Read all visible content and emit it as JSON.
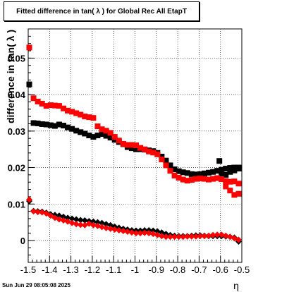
{
  "chart_data": {
    "type": "scatter",
    "title": "Fitted difference in tan( λ ) for Global Rec All EtapT",
    "xlabel": "η",
    "ylabel": "difference in tan( λ )",
    "xlim": [
      -1.5,
      -0.5
    ],
    "ylim": [
      -0.006,
      0.058
    ],
    "x_ticks": [
      -1.5,
      -1.4,
      -1.3,
      -1.2,
      -1.1,
      -1.0,
      -0.9,
      -0.8,
      -0.7,
      -0.6,
      -0.5
    ],
    "x_tick_labels": [
      "-1.5",
      "-1.4",
      "-1.3",
      "-1.2",
      "-1.1",
      "-1",
      "-0.9",
      "-0.8",
      "-0.7",
      "-0.6",
      "-0.5"
    ],
    "y_ticks": [
      0,
      0.01,
      0.02,
      0.03,
      0.04,
      0.05
    ],
    "y_tick_labels": [
      "0",
      "0.01",
      "0.02",
      "0.03",
      "0.04",
      "0.05"
    ],
    "grid": true,
    "series": [
      {
        "color": "#000000",
        "marker": "square",
        "x": [
          -1.495,
          -1.475,
          -1.455,
          -1.435,
          -1.415,
          -1.395,
          -1.375,
          -1.355,
          -1.335,
          -1.315,
          -1.295,
          -1.275,
          -1.255,
          -1.235,
          -1.215,
          -1.195,
          -1.175,
          -1.155,
          -1.135,
          -1.115,
          -1.095,
          -1.075,
          -1.055,
          -1.035,
          -1.015,
          -0.995,
          -0.975,
          -0.955,
          -0.935,
          -0.915,
          -0.895,
          -0.875,
          -0.855,
          -0.835,
          -0.815,
          -0.795,
          -0.775,
          -0.755,
          -0.735,
          -0.715,
          -0.695,
          -0.675,
          -0.655,
          -0.635,
          -0.615,
          -0.595,
          -0.575,
          -0.555,
          -0.535,
          -0.515
        ],
        "y": [
          0.0428,
          0.0322,
          0.0321,
          0.0319,
          0.0318,
          0.0316,
          0.0314,
          0.0318,
          0.0315,
          0.031,
          0.0306,
          0.0301,
          0.0297,
          0.0293,
          0.0288,
          0.0284,
          0.0288,
          0.0292,
          0.0287,
          0.0282,
          0.0276,
          0.027,
          0.0264,
          0.0256,
          0.0253,
          0.025,
          0.025,
          0.0249,
          0.0247,
          0.0245,
          0.024,
          0.023,
          0.0219,
          0.0206,
          0.0195,
          0.019,
          0.0187,
          0.0185,
          0.0182,
          0.0181,
          0.0182,
          0.0184,
          0.0186,
          0.0188,
          0.0191,
          0.0194,
          0.0197,
          0.0199,
          0.02,
          0.02
        ],
        "extra_points": [
          {
            "x": -0.515,
            "y": 0.0197
          },
          {
            "x": -0.535,
            "y": 0.0192
          },
          {
            "x": -0.555,
            "y": 0.0188
          },
          {
            "x": -0.575,
            "y": 0.018
          },
          {
            "x": -0.595,
            "y": 0.0183
          },
          {
            "x": -0.605,
            "y": 0.0218
          }
        ]
      },
      {
        "color": "#ff0000",
        "marker": "square",
        "x": [
          -1.495,
          -1.475,
          -1.455,
          -1.435,
          -1.415,
          -1.395,
          -1.375,
          -1.355,
          -1.335,
          -1.315,
          -1.295,
          -1.275,
          -1.255,
          -1.235,
          -1.215,
          -1.195,
          -1.175,
          -1.155,
          -1.135,
          -1.115,
          -1.095,
          -1.075,
          -1.055,
          -1.035,
          -1.015,
          -0.995,
          -0.975,
          -0.955,
          -0.935,
          -0.915,
          -0.895,
          -0.875,
          -0.855,
          -0.835,
          -0.815,
          -0.795,
          -0.775,
          -0.755,
          -0.735,
          -0.715,
          -0.695,
          -0.675,
          -0.655,
          -0.635,
          -0.615,
          -0.595,
          -0.575,
          -0.555,
          -0.535,
          -0.515
        ],
        "y": [
          0.0529,
          0.039,
          0.0381,
          0.0375,
          0.0369,
          0.0371,
          0.037,
          0.0369,
          0.0362,
          0.0356,
          0.0353,
          0.0349,
          0.0345,
          0.034,
          0.0338,
          0.0336,
          0.0313,
          0.0305,
          0.0301,
          0.0295,
          0.0284,
          0.0274,
          0.0265,
          0.0262,
          0.0262,
          0.0261,
          0.0254,
          0.025,
          0.0244,
          0.0241,
          0.0236,
          0.0222,
          0.0206,
          0.0191,
          0.0178,
          0.0172,
          0.0167,
          0.0164,
          0.0166,
          0.0169,
          0.017,
          0.0169,
          0.0167,
          0.0169,
          0.0171,
          0.0168,
          0.0163,
          0.0161,
          0.0162,
          0.0156
        ],
        "extra_points": [
          {
            "x": -0.575,
            "y": 0.0148
          },
          {
            "x": -0.555,
            "y": 0.0137
          },
          {
            "x": -0.535,
            "y": 0.0125
          },
          {
            "x": -0.515,
            "y": 0.0128
          }
        ]
      },
      {
        "color": "#000000",
        "marker": "diamond",
        "x": [
          -1.495,
          -1.475,
          -1.455,
          -1.435,
          -1.415,
          -1.395,
          -1.375,
          -1.355,
          -1.335,
          -1.315,
          -1.295,
          -1.275,
          -1.255,
          -1.235,
          -1.215,
          -1.195,
          -1.175,
          -1.155,
          -1.135,
          -1.115,
          -1.095,
          -1.075,
          -1.055,
          -1.035,
          -1.015,
          -0.995,
          -0.975,
          -0.955,
          -0.935,
          -0.915,
          -0.895,
          -0.875,
          -0.855,
          -0.835,
          -0.815,
          -0.795,
          -0.775,
          -0.755,
          -0.735,
          -0.715,
          -0.695,
          -0.675,
          -0.655,
          -0.635,
          -0.615,
          -0.595,
          -0.575,
          -0.555,
          -0.535,
          -0.515
        ],
        "y": [
          0.0108,
          0.0081,
          0.008,
          0.0079,
          0.0076,
          0.0072,
          0.007,
          0.0068,
          0.0065,
          0.0062,
          0.006,
          0.0058,
          0.0056,
          0.0055,
          0.0053,
          0.0052,
          0.005,
          0.0048,
          0.0045,
          0.0042,
          0.0038,
          0.0035,
          0.0032,
          0.003,
          0.0028,
          0.0027,
          0.0027,
          0.0028,
          0.0028,
          0.0027,
          0.0025,
          0.0022,
          0.0018,
          0.0015,
          0.0013,
          0.0012,
          0.0012,
          0.0012,
          0.0013,
          0.0014,
          0.0014,
          0.0013,
          0.0012,
          0.0012,
          0.0012,
          0.0012,
          0.0011,
          0.001,
          0.0008,
          -0.0003
        ],
        "extra_points": []
      },
      {
        "color": "#ff0000",
        "marker": "diamond",
        "x": [
          -1.495,
          -1.475,
          -1.455,
          -1.435,
          -1.415,
          -1.395,
          -1.375,
          -1.355,
          -1.335,
          -1.315,
          -1.295,
          -1.275,
          -1.255,
          -1.235,
          -1.215,
          -1.195,
          -1.175,
          -1.155,
          -1.135,
          -1.115,
          -1.095,
          -1.075,
          -1.055,
          -1.035,
          -1.015,
          -0.995,
          -0.975,
          -0.955,
          -0.935,
          -0.915,
          -0.895,
          -0.875,
          -0.855,
          -0.835,
          -0.815,
          -0.795,
          -0.775,
          -0.755,
          -0.735,
          -0.715,
          -0.695,
          -0.675,
          -0.655,
          -0.635,
          -0.615,
          -0.595,
          -0.575,
          -0.555,
          -0.535,
          -0.515
        ],
        "y": [
          0.0112,
          0.008,
          0.0078,
          0.0077,
          0.0074,
          0.0068,
          0.0062,
          0.0058,
          0.0055,
          0.0052,
          0.0048,
          0.0045,
          0.0043,
          0.0042,
          0.0046,
          0.0042,
          0.004,
          0.0037,
          0.0034,
          0.0032,
          0.003,
          0.0028,
          0.0026,
          0.0024,
          0.0022,
          0.002,
          0.002,
          0.0021,
          0.002,
          0.0018,
          0.0015,
          0.0012,
          0.001,
          0.001,
          0.001,
          0.001,
          0.001,
          0.0011,
          0.0011,
          0.0011,
          0.0012,
          0.0012,
          0.0013,
          0.0015,
          0.0016,
          0.0016,
          0.0013,
          0.001,
          0.0006,
          0.0002
        ],
        "extra_points": []
      }
    ]
  },
  "footer": {
    "timestamp": "Sun Jun 29 08:05:08 2025"
  }
}
